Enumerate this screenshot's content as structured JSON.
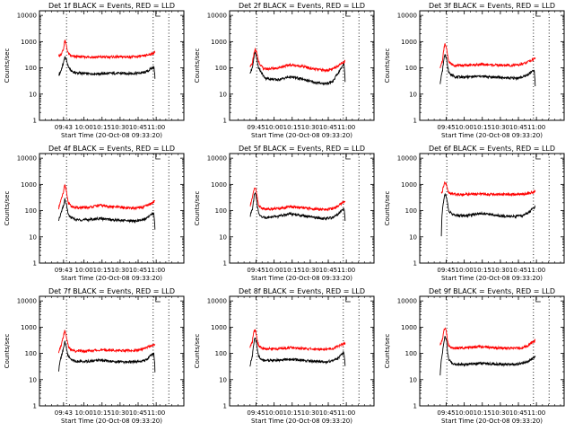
{
  "figure": {
    "background": "#ffffff",
    "events_color": "#000000",
    "lld_color": "#ff0000",
    "y_ticks": [
      1,
      10,
      100,
      1000,
      10000
    ],
    "y_tick_labels": [
      "1",
      "10",
      "100",
      "1000",
      "10000"
    ]
  },
  "chart_data": [
    {
      "type": "line",
      "title": "Det 1f BLACK = Events, RED = LLD",
      "xlabel": "Start Time (20-Oct-08 09:33:20)",
      "ylabel": "Counts/sec",
      "x_tick_labels": [
        "09:43",
        "10:00",
        "10:15",
        "10:30",
        "10:45",
        "11:00"
      ],
      "x_ticks_min": [
        10,
        27,
        42,
        57,
        72,
        87
      ],
      "xlim_min": [
        -10,
        110
      ],
      "ylim": [
        1,
        15000
      ],
      "log_y": true,
      "vlines_min": [
        12.5,
        84.5,
        97.5
      ],
      "sample_x_min": [
        6,
        8,
        10,
        11,
        12,
        13,
        14,
        16,
        18,
        20,
        25,
        30,
        40,
        50,
        60,
        70,
        76,
        80,
        83,
        85,
        86
      ],
      "series": [
        {
          "name": "Events",
          "values": [
            50,
            80,
            150,
            260,
            220,
            160,
            110,
            80,
            70,
            65,
            62,
            60,
            60,
            62,
            62,
            62,
            65,
            75,
            95,
            110,
            40
          ]
        },
        {
          "name": "LLD",
          "values": [
            280,
            330,
            500,
            1100,
            800,
            500,
            350,
            290,
            270,
            265,
            265,
            260,
            260,
            262,
            262,
            265,
            280,
            310,
            340,
            370,
            380
          ]
        }
      ]
    },
    {
      "type": "line",
      "title": "Det 2f BLACK = Events, RED = LLD",
      "xlabel": "Start Time (20-Oct-08 09:33:20)",
      "ylabel": "Counts/sec",
      "x_tick_labels": [
        "09:45",
        "10:00",
        "10:15",
        "10:30",
        "10:45",
        "11:00"
      ],
      "x_ticks_min": [
        12,
        27,
        42,
        57,
        72,
        87
      ],
      "xlim_min": [
        -10,
        110
      ],
      "ylim": [
        1,
        15000
      ],
      "log_y": true,
      "vlines_min": [
        12.5,
        84.5,
        97.5
      ],
      "sample_x_min": [
        7,
        9,
        10,
        11,
        12,
        13,
        14,
        16,
        18,
        20,
        30,
        40,
        50,
        60,
        70,
        76,
        80,
        83,
        85,
        86
      ],
      "series": [
        {
          "name": "Events",
          "values": [
            60,
            100,
            200,
            400,
            300,
            180,
            100,
            70,
            50,
            40,
            35,
            45,
            38,
            28,
            25,
            30,
            60,
            100,
            150,
            30
          ]
        },
        {
          "name": "LLD",
          "values": [
            100,
            150,
            300,
            500,
            450,
            300,
            180,
            120,
            95,
            90,
            100,
            130,
            115,
            90,
            80,
            90,
            120,
            150,
            170,
            180
          ]
        }
      ]
    },
    {
      "type": "line",
      "title": "Det 3f BLACK = Events, RED = LLD",
      "xlabel": "Start Time (20-Oct-08 09:33:20)",
      "ylabel": "Counts/sec",
      "x_tick_labels": [
        "09:45",
        "10:00",
        "10:15",
        "10:30",
        "10:45",
        "11:00"
      ],
      "x_ticks_min": [
        12,
        27,
        42,
        57,
        72,
        87
      ],
      "xlim_min": [
        -10,
        110
      ],
      "ylim": [
        1,
        15000
      ],
      "log_y": true,
      "vlines_min": [
        12.5,
        84.5,
        97.5
      ],
      "sample_x_min": [
        7,
        9,
        10,
        11,
        12,
        13,
        14,
        16,
        18,
        20,
        30,
        40,
        50,
        60,
        70,
        76,
        80,
        83,
        85,
        86
      ],
      "series": [
        {
          "name": "Events",
          "values": [
            25,
            80,
            200,
            350,
            250,
            120,
            70,
            55,
            50,
            45,
            45,
            48,
            45,
            42,
            40,
            45,
            55,
            70,
            80,
            20
          ]
        },
        {
          "name": "LLD",
          "values": [
            90,
            200,
            500,
            800,
            600,
            300,
            180,
            140,
            130,
            125,
            125,
            135,
            130,
            125,
            125,
            140,
            170,
            200,
            220,
            230
          ]
        }
      ]
    },
    {
      "type": "line",
      "title": "Det 4f BLACK = Events, RED = LLD",
      "xlabel": "Start Time (20-Oct-08 09:33:20)",
      "ylabel": "Counts/sec",
      "x_tick_labels": [
        "09:43",
        "10:00",
        "10:15",
        "10:30",
        "10:45",
        "11:00"
      ],
      "x_ticks_min": [
        10,
        27,
        42,
        57,
        72,
        87
      ],
      "xlim_min": [
        -10,
        110
      ],
      "ylim": [
        1,
        15000
      ],
      "log_y": true,
      "vlines_min": [
        12.5,
        84.5,
        97.5
      ],
      "sample_x_min": [
        6,
        8,
        10,
        11,
        12,
        13,
        14,
        16,
        18,
        20,
        30,
        40,
        50,
        60,
        70,
        76,
        80,
        83,
        85,
        86
      ],
      "series": [
        {
          "name": "Events",
          "values": [
            40,
            80,
            150,
            260,
            200,
            120,
            70,
            55,
            50,
            45,
            45,
            50,
            45,
            42,
            40,
            45,
            55,
            70,
            80,
            20
          ]
        },
        {
          "name": "LLD",
          "values": [
            120,
            250,
            500,
            900,
            700,
            350,
            200,
            150,
            140,
            130,
            130,
            160,
            140,
            130,
            125,
            135,
            160,
            190,
            220,
            240
          ]
        }
      ]
    },
    {
      "type": "line",
      "title": "Det 5f BLACK = Events, RED = LLD",
      "xlabel": "Start Time (20-Oct-08 09:33:20)",
      "ylabel": "Counts/sec",
      "x_tick_labels": [
        "09:45",
        "10:00",
        "10:15",
        "10:30",
        "10:45",
        "11:00"
      ],
      "x_ticks_min": [
        12,
        27,
        42,
        57,
        72,
        87
      ],
      "xlim_min": [
        -10,
        110
      ],
      "ylim": [
        1,
        15000
      ],
      "log_y": true,
      "vlines_min": [
        12.5,
        84.5,
        97.5
      ],
      "sample_x_min": [
        7,
        9,
        10,
        11,
        12,
        13,
        14,
        16,
        18,
        20,
        30,
        40,
        50,
        60,
        70,
        76,
        80,
        83,
        85,
        86
      ],
      "series": [
        {
          "name": "Events",
          "values": [
            60,
            120,
            250,
            500,
            350,
            150,
            80,
            60,
            55,
            55,
            60,
            75,
            65,
            55,
            50,
            55,
            70,
            100,
            120,
            40
          ]
        },
        {
          "name": "LLD",
          "values": [
            150,
            300,
            600,
            800,
            600,
            300,
            170,
            130,
            120,
            115,
            120,
            140,
            130,
            115,
            110,
            120,
            150,
            190,
            220,
            240
          ]
        }
      ]
    },
    {
      "type": "line",
      "title": "Det 6f BLACK = Events, RED = LLD",
      "xlabel": "Start Time (20-Oct-08 09:33:20)",
      "ylabel": "Counts/sec",
      "x_tick_labels": [
        "09:45",
        "10:00",
        "10:15",
        "10:30",
        "10:45",
        "11:00"
      ],
      "x_ticks_min": [
        12,
        27,
        42,
        57,
        72,
        87
      ],
      "xlim_min": [
        -10,
        110
      ],
      "ylim": [
        1,
        15000
      ],
      "log_y": true,
      "vlines_min": [
        12.5,
        84.5,
        97.5
      ],
      "sample_x_min": [
        8,
        9,
        10,
        11,
        12,
        13,
        14,
        16,
        18,
        20,
        30,
        40,
        50,
        60,
        70,
        76,
        80,
        83,
        85,
        86
      ],
      "series": [
        {
          "name": "Events",
          "values": [
            10,
            120,
            250,
            450,
            350,
            200,
            100,
            80,
            70,
            65,
            65,
            80,
            70,
            62,
            60,
            65,
            80,
            110,
            130,
            150
          ]
        },
        {
          "name": "LLD",
          "values": [
            420,
            600,
            900,
            1200,
            1000,
            650,
            480,
            440,
            430,
            420,
            420,
            430,
            420,
            415,
            420,
            430,
            460,
            500,
            520,
            530
          ]
        }
      ]
    },
    {
      "type": "line",
      "title": "Det 7f BLACK = Events, RED = LLD",
      "xlabel": "Start Time (20-Oct-08 09:33:20)",
      "ylabel": "Counts/sec",
      "x_tick_labels": [
        "09:43",
        "10:00",
        "10:15",
        "10:30",
        "10:45",
        "11:00"
      ],
      "x_ticks_min": [
        10,
        27,
        42,
        57,
        72,
        87
      ],
      "xlim_min": [
        -10,
        110
      ],
      "ylim": [
        1,
        15000
      ],
      "log_y": true,
      "vlines_min": [
        12.5,
        84.5,
        97.5
      ],
      "sample_x_min": [
        6,
        8,
        10,
        11,
        12,
        13,
        14,
        16,
        18,
        20,
        30,
        40,
        50,
        60,
        70,
        76,
        80,
        83,
        85,
        86
      ],
      "series": [
        {
          "name": "Events",
          "values": [
            20,
            70,
            150,
            280,
            200,
            110,
            75,
            60,
            55,
            50,
            50,
            55,
            50,
            48,
            48,
            52,
            65,
            85,
            100,
            20
          ]
        },
        {
          "name": "LLD",
          "values": [
            100,
            200,
            450,
            750,
            550,
            300,
            180,
            140,
            130,
            125,
            125,
            135,
            130,
            128,
            130,
            145,
            175,
            200,
            210,
            220
          ]
        }
      ]
    },
    {
      "type": "line",
      "title": "Det 8f BLACK = Events, RED = LLD",
      "xlabel": "Start Time (20-Oct-08 09:33:20)",
      "ylabel": "Counts/sec",
      "x_tick_labels": [
        "09:45",
        "10:00",
        "10:15",
        "10:30",
        "10:45",
        "11:00"
      ],
      "x_ticks_min": [
        12,
        27,
        42,
        57,
        72,
        87
      ],
      "xlim_min": [
        -10,
        110
      ],
      "ylim": [
        1,
        15000
      ],
      "log_y": true,
      "vlines_min": [
        12.5,
        84.5,
        97.5
      ],
      "sample_x_min": [
        7,
        9,
        10,
        11,
        12,
        13,
        14,
        16,
        18,
        20,
        30,
        40,
        50,
        60,
        70,
        76,
        80,
        83,
        85,
        86
      ],
      "series": [
        {
          "name": "Events",
          "values": [
            30,
            80,
            200,
            400,
            300,
            150,
            80,
            60,
            55,
            55,
            55,
            60,
            55,
            50,
            48,
            52,
            65,
            90,
            110,
            30
          ]
        },
        {
          "name": "LLD",
          "values": [
            160,
            300,
            600,
            800,
            600,
            320,
            200,
            165,
            155,
            150,
            150,
            165,
            155,
            145,
            145,
            155,
            185,
            220,
            235,
            240
          ]
        }
      ]
    },
    {
      "type": "line",
      "title": "Det 9f BLACK = Events, RED = LLD",
      "xlabel": "Start Time (20-Oct-08 09:33:20)",
      "ylabel": "Counts/sec",
      "x_tick_labels": [
        "09:45",
        "10:00",
        "10:15",
        "10:30",
        "10:45",
        "11:00"
      ],
      "x_ticks_min": [
        12,
        27,
        42,
        57,
        72,
        87
      ],
      "xlim_min": [
        -10,
        110
      ],
      "ylim": [
        1,
        15000
      ],
      "log_y": true,
      "vlines_min": [
        12.5,
        84.5,
        97.5
      ],
      "sample_x_min": [
        7,
        9,
        10,
        11,
        12,
        13,
        14,
        16,
        18,
        20,
        30,
        40,
        50,
        60,
        70,
        76,
        80,
        83,
        85,
        86
      ],
      "series": [
        {
          "name": "Events",
          "values": [
            15,
            100,
            250,
            450,
            350,
            120,
            60,
            45,
            40,
            38,
            38,
            42,
            40,
            38,
            38,
            42,
            50,
            60,
            70,
            80
          ]
        },
        {
          "name": "LLD",
          "values": [
            200,
            350,
            700,
            900,
            700,
            300,
            200,
            170,
            160,
            160,
            170,
            180,
            170,
            160,
            160,
            170,
            200,
            260,
            300,
            320
          ]
        }
      ]
    }
  ]
}
